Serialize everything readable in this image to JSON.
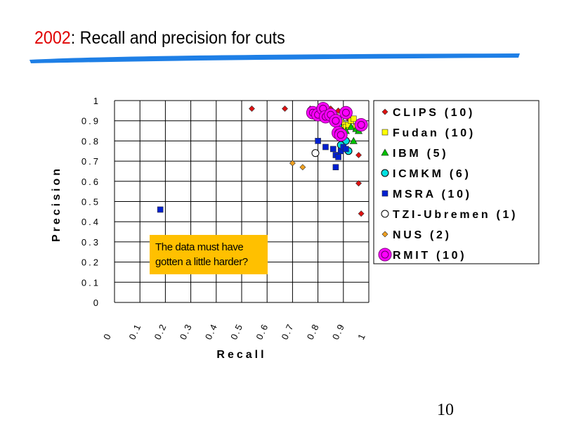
{
  "slide": {
    "title_year": "2002",
    "title_rest": ": Recall and precision for cuts",
    "page_number": "10",
    "callout_line1": "The data must have",
    "callout_line2": "gotten a little harder?"
  },
  "colors": {
    "title_year": "#e00000",
    "swoosh": "#1e7fe6",
    "callout_bg": "#ffc000"
  },
  "chart_data": {
    "type": "scatter",
    "xlabel": "Recall",
    "ylabel": "Precision",
    "xlim": [
      0,
      1
    ],
    "ylim": [
      0,
      1
    ],
    "x_ticks": [
      "0",
      "0.1",
      "0.2",
      "0.3",
      "0.4",
      "0.5",
      "0.6",
      "0.7",
      "0.8",
      "0.9",
      "1"
    ],
    "y_ticks": [
      "1",
      "0.9",
      "0.8",
      "0.7",
      "0.6",
      "0.5",
      "0.4",
      "0.3",
      "0.2",
      "0.1",
      "0"
    ],
    "grid": true,
    "legend_position": "right",
    "series": [
      {
        "name": "CLIPS (10)",
        "marker": "diamond",
        "color": "#e01010",
        "points": [
          [
            0.54,
            0.96
          ],
          [
            0.67,
            0.96
          ],
          [
            0.77,
            0.96
          ],
          [
            0.85,
            0.96
          ],
          [
            0.88,
            0.95
          ],
          [
            0.92,
            0.91
          ],
          [
            0.95,
            0.88
          ],
          [
            0.96,
            0.73
          ],
          [
            0.96,
            0.59
          ],
          [
            0.97,
            0.44
          ]
        ]
      },
      {
        "name": "Fudan (10)",
        "marker": "square",
        "color": "#ffff00",
        "points": [
          [
            0.86,
            0.93
          ],
          [
            0.87,
            0.92
          ],
          [
            0.88,
            0.9
          ],
          [
            0.89,
            0.89
          ],
          [
            0.9,
            0.88
          ],
          [
            0.91,
            0.87
          ],
          [
            0.92,
            0.88
          ],
          [
            0.93,
            0.9
          ],
          [
            0.94,
            0.91
          ],
          [
            0.95,
            0.87
          ]
        ]
      },
      {
        "name": "IBM (5)",
        "marker": "triangle",
        "color": "#00c000",
        "points": [
          [
            0.91,
            0.85
          ],
          [
            0.93,
            0.87
          ],
          [
            0.95,
            0.86
          ],
          [
            0.94,
            0.8
          ],
          [
            0.96,
            0.85
          ]
        ]
      },
      {
        "name": "ICMKM (6)",
        "marker": "circle",
        "color": "#00e0e0",
        "points": [
          [
            0.88,
            0.88
          ],
          [
            0.89,
            0.85
          ],
          [
            0.9,
            0.83
          ],
          [
            0.91,
            0.8
          ],
          [
            0.89,
            0.78
          ],
          [
            0.92,
            0.75
          ]
        ]
      },
      {
        "name": "MSRA (10)",
        "marker": "square",
        "color": "#0020d0",
        "points": [
          [
            0.18,
            0.46
          ],
          [
            0.8,
            0.8
          ],
          [
            0.83,
            0.77
          ],
          [
            0.86,
            0.76
          ],
          [
            0.87,
            0.73
          ],
          [
            0.88,
            0.72
          ],
          [
            0.89,
            0.75
          ],
          [
            0.9,
            0.77
          ],
          [
            0.87,
            0.67
          ],
          [
            0.91,
            0.76
          ]
        ]
      },
      {
        "name": "TZI-Ubremen (1)",
        "marker": "circle",
        "color": "#ffffff",
        "points": [
          [
            0.79,
            0.74
          ]
        ]
      },
      {
        "name": "NUS (2)",
        "marker": "diamond",
        "color": "#f0a020",
        "points": [
          [
            0.7,
            0.69
          ],
          [
            0.74,
            0.67
          ]
        ]
      },
      {
        "name": "RMIT (10)",
        "marker": "circle-ring",
        "color": "#ff00ff",
        "points": [
          [
            0.78,
            0.94
          ],
          [
            0.8,
            0.93
          ],
          [
            0.82,
            0.96
          ],
          [
            0.83,
            0.92
          ],
          [
            0.85,
            0.93
          ],
          [
            0.87,
            0.9
          ],
          [
            0.88,
            0.84
          ],
          [
            0.89,
            0.83
          ],
          [
            0.91,
            0.94
          ],
          [
            0.97,
            0.88
          ]
        ]
      }
    ]
  }
}
